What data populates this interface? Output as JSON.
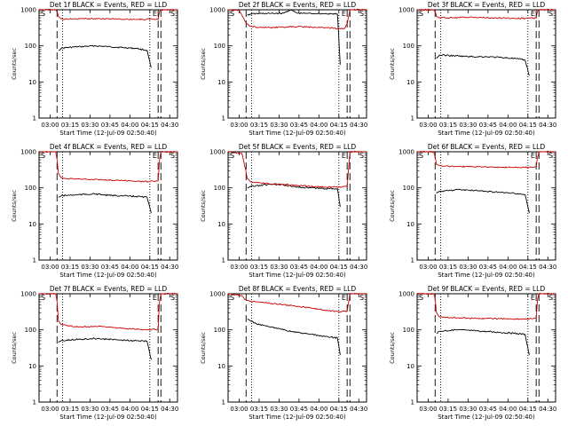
{
  "footer_stamp": "",
  "chart_data": [
    {
      "type": "line",
      "title": "Det 1f BLACK = Events, RED = LLD",
      "xlabel": "Start Time (12-Jul-09 02:50:40)",
      "ylabel": "Counts/sec",
      "xticks": [
        "03:00",
        "03:15",
        "03:30",
        "03:45",
        "04:00",
        "04:15",
        "04:30"
      ],
      "xlim": [
        0,
        100
      ],
      "ylim": [
        1,
        1000
      ],
      "yscale": "log",
      "yticks": [
        "1",
        "10",
        "100",
        "1000"
      ],
      "markers": {
        "S": "S",
        "E": "E"
      },
      "dashed_x": [
        13,
        86,
        88
      ],
      "dotted_x": [
        17,
        80
      ],
      "colors": {
        "events": "#000000",
        "lld": "#cc0000"
      },
      "series": [
        {
          "name": "BLACK = Events",
          "x": [
            14,
            16,
            20,
            30,
            40,
            50,
            60,
            70,
            78,
            81
          ],
          "y": [
            75,
            85,
            90,
            95,
            100,
            95,
            90,
            85,
            75,
            25
          ]
        },
        {
          "name": "RED = LLD",
          "x": [
            0,
            12,
            13,
            14,
            16,
            20,
            30,
            40,
            50,
            60,
            70,
            80,
            86,
            87,
            88,
            100
          ],
          "y": [
            1000,
            1000,
            900,
            650,
            560,
            550,
            560,
            570,
            560,
            550,
            540,
            545,
            550,
            900,
            1000,
            1000
          ]
        }
      ]
    },
    {
      "type": "line",
      "title": "Det 2f BLACK = Events, RED = LLD",
      "xlabel": "Start Time (12-Jul-09 02:50:40)",
      "ylabel": "Counts/sec",
      "xticks": [
        "03:00",
        "03:15",
        "03:30",
        "03:45",
        "04:00",
        "04:15",
        "04:30"
      ],
      "xlim": [
        0,
        100
      ],
      "ylim": [
        1,
        1000
      ],
      "yscale": "log",
      "yticks": [
        "1",
        "10",
        "100",
        "1000"
      ],
      "markers": {
        "S": "S",
        "E": "E"
      },
      "dashed_x": [
        13,
        86,
        88
      ],
      "dotted_x": [
        17,
        80
      ],
      "colors": {
        "events": "#000000",
        "lld": "#cc0000"
      },
      "series": [
        {
          "name": "BLACK = Events",
          "x": [
            14,
            16,
            20,
            30,
            40,
            45,
            50,
            60,
            70,
            79,
            81
          ],
          "y": [
            700,
            760,
            780,
            790,
            800,
            1000,
            800,
            790,
            780,
            760,
            30
          ]
        },
        {
          "name": "RED = LLD",
          "x": [
            0,
            8,
            10,
            12,
            14,
            16,
            20,
            30,
            40,
            50,
            60,
            70,
            80,
            84,
            86,
            88,
            100
          ],
          "y": [
            1000,
            950,
            700,
            500,
            400,
            350,
            330,
            320,
            330,
            340,
            330,
            320,
            300,
            300,
            400,
            1000,
            1000
          ]
        }
      ]
    },
    {
      "type": "line",
      "title": "Det 3f BLACK = Events, RED = LLD",
      "xlabel": "Start Time (12-Jul-09 02:50:40)",
      "ylabel": "Counts/sec",
      "xticks": [
        "03:00",
        "03:15",
        "03:30",
        "03:45",
        "04:00",
        "04:15",
        "04:30"
      ],
      "xlim": [
        0,
        100
      ],
      "ylim": [
        1,
        1000
      ],
      "yscale": "log",
      "yticks": [
        "1",
        "10",
        "100",
        "1000"
      ],
      "markers": {
        "S": "S",
        "E": "E"
      },
      "dashed_x": [
        13,
        86,
        88
      ],
      "dotted_x": [
        17,
        80
      ],
      "colors": {
        "events": "#000000",
        "lld": "#cc0000"
      },
      "series": [
        {
          "name": "BLACK = Events",
          "x": [
            14,
            16,
            20,
            30,
            40,
            50,
            60,
            70,
            78,
            81
          ],
          "y": [
            45,
            55,
            55,
            52,
            50,
            50,
            48,
            45,
            40,
            15
          ]
        },
        {
          "name": "RED = LLD",
          "x": [
            0,
            12,
            13,
            14,
            16,
            20,
            30,
            40,
            50,
            60,
            70,
            80,
            86,
            87,
            88,
            100
          ],
          "y": [
            1000,
            1000,
            900,
            650,
            600,
            600,
            610,
            620,
            600,
            590,
            580,
            580,
            590,
            900,
            1000,
            1000
          ]
        }
      ]
    },
    {
      "type": "line",
      "title": "Det 4f BLACK = Events, RED = LLD",
      "xlabel": "Start Time (12-Jul-09 02:50:40)",
      "ylabel": "Counts/sec",
      "xticks": [
        "03:00",
        "03:15",
        "03:30",
        "03:45",
        "04:00",
        "04:15",
        "04:30"
      ],
      "xlim": [
        0,
        100
      ],
      "ylim": [
        1,
        1000
      ],
      "yscale": "log",
      "yticks": [
        "1",
        "10",
        "100",
        "1000"
      ],
      "markers": {
        "S": "S",
        "E": "E"
      },
      "dashed_x": [
        13,
        86,
        88
      ],
      "dotted_x": [
        17,
        80
      ],
      "colors": {
        "events": "#000000",
        "lld": "#cc0000"
      },
      "series": [
        {
          "name": "BLACK = Events",
          "x": [
            14,
            16,
            20,
            30,
            40,
            50,
            60,
            70,
            78,
            81
          ],
          "y": [
            55,
            60,
            62,
            65,
            68,
            62,
            60,
            58,
            55,
            20
          ]
        },
        {
          "name": "RED = LLD",
          "x": [
            0,
            12,
            13,
            14,
            16,
            20,
            30,
            40,
            50,
            60,
            70,
            80,
            86,
            87,
            88,
            100
          ],
          "y": [
            1000,
            1000,
            600,
            250,
            190,
            180,
            175,
            170,
            165,
            160,
            150,
            150,
            155,
            600,
            1000,
            1000
          ]
        }
      ]
    },
    {
      "type": "line",
      "title": "Det 5f BLACK = Events, RED = LLD",
      "xlabel": "Start Time (12-Jul-09 02:50:40)",
      "ylabel": "Counts/sec",
      "xticks": [
        "03:00",
        "03:15",
        "03:30",
        "03:45",
        "04:00",
        "04:15",
        "04:30"
      ],
      "xlim": [
        0,
        100
      ],
      "ylim": [
        1,
        1000
      ],
      "yscale": "log",
      "yticks": [
        "1",
        "10",
        "100",
        "1000"
      ],
      "markers": {
        "S": "S",
        "E": "E"
      },
      "dashed_x": [
        13,
        86,
        88
      ],
      "dotted_x": [
        17,
        80
      ],
      "colors": {
        "events": "#000000",
        "lld": "#cc0000"
      },
      "series": [
        {
          "name": "BLACK = Events",
          "x": [
            14,
            16,
            20,
            30,
            40,
            50,
            60,
            70,
            79,
            81
          ],
          "y": [
            100,
            110,
            115,
            125,
            120,
            105,
            100,
            95,
            95,
            30
          ]
        },
        {
          "name": "RED = LLD",
          "x": [
            0,
            10,
            12,
            14,
            16,
            20,
            30,
            40,
            50,
            60,
            70,
            80,
            86,
            88,
            100
          ],
          "y": [
            1000,
            900,
            400,
            180,
            150,
            140,
            130,
            125,
            115,
            110,
            105,
            105,
            110,
            1000,
            1000
          ]
        }
      ]
    },
    {
      "type": "line",
      "title": "Det 6f BLACK = Events, RED = LLD",
      "xlabel": "Start Time (12-Jul-09 02:50:40)",
      "ylabel": "Counts/sec",
      "xticks": [
        "03:00",
        "03:15",
        "03:30",
        "03:45",
        "04:00",
        "04:15",
        "04:30"
      ],
      "xlim": [
        0,
        100
      ],
      "ylim": [
        1,
        1000
      ],
      "yscale": "log",
      "yticks": [
        "1",
        "10",
        "100",
        "1000"
      ],
      "markers": {
        "S": "S",
        "E": "E"
      },
      "dashed_x": [
        13,
        86,
        88
      ],
      "dotted_x": [
        17,
        80
      ],
      "colors": {
        "events": "#000000",
        "lld": "#cc0000"
      },
      "series": [
        {
          "name": "BLACK = Events",
          "x": [
            14,
            16,
            20,
            30,
            40,
            50,
            60,
            70,
            78,
            81
          ],
          "y": [
            70,
            80,
            82,
            90,
            85,
            80,
            75,
            70,
            65,
            20
          ]
        },
        {
          "name": "RED = LLD",
          "x": [
            0,
            12,
            13,
            14,
            16,
            20,
            30,
            40,
            50,
            60,
            70,
            80,
            86,
            87,
            88,
            100
          ],
          "y": [
            1000,
            1000,
            700,
            450,
            420,
            400,
            390,
            385,
            380,
            375,
            370,
            370,
            380,
            700,
            1000,
            1000
          ]
        }
      ]
    },
    {
      "type": "line",
      "title": "Det 7f BLACK = Events, RED = LLD",
      "xlabel": "Start Time (12-Jul-09 02:50:40)",
      "ylabel": "Counts/sec",
      "xticks": [
        "03:00",
        "03:15",
        "03:30",
        "03:45",
        "04:00",
        "04:15",
        "04:30"
      ],
      "xlim": [
        0,
        100
      ],
      "ylim": [
        1,
        1000
      ],
      "yscale": "log",
      "yticks": [
        "1",
        "10",
        "100",
        "1000"
      ],
      "markers": {
        "S": "S",
        "E": "E"
      },
      "dashed_x": [
        13,
        86,
        88
      ],
      "dotted_x": [
        17,
        80
      ],
      "colors": {
        "events": "#000000",
        "lld": "#cc0000"
      },
      "series": [
        {
          "name": "BLACK = Events",
          "x": [
            14,
            16,
            20,
            30,
            40,
            50,
            60,
            70,
            78,
            81
          ],
          "y": [
            45,
            50,
            52,
            55,
            58,
            55,
            52,
            50,
            48,
            15
          ]
        },
        {
          "name": "RED = LLD",
          "x": [
            0,
            12,
            13,
            14,
            16,
            20,
            30,
            40,
            50,
            60,
            70,
            80,
            86,
            87,
            88,
            100
          ],
          "y": [
            1000,
            1000,
            600,
            180,
            140,
            130,
            120,
            125,
            120,
            110,
            105,
            100,
            105,
            600,
            1000,
            1000
          ]
        }
      ]
    },
    {
      "type": "line",
      "title": "Det 8f BLACK = Events, RED = LLD",
      "xlabel": "Start Time (12-Jul-09 02:50:40)",
      "ylabel": "Counts/sec",
      "xticks": [
        "03:00",
        "03:15",
        "03:30",
        "03:45",
        "04:00",
        "04:15",
        "04:30"
      ],
      "xlim": [
        0,
        100
      ],
      "ylim": [
        1,
        1000
      ],
      "yscale": "log",
      "yticks": [
        "1",
        "10",
        "100",
        "1000"
      ],
      "markers": {
        "S": "S",
        "E": "E"
      },
      "dashed_x": [
        13,
        86,
        88
      ],
      "dotted_x": [
        17,
        80
      ],
      "colors": {
        "events": "#000000",
        "lld": "#cc0000"
      },
      "series": [
        {
          "name": "BLACK = Events",
          "x": [
            14,
            16,
            20,
            30,
            40,
            50,
            60,
            70,
            79,
            81
          ],
          "y": [
            200,
            180,
            150,
            120,
            100,
            85,
            75,
            65,
            60,
            20
          ]
        },
        {
          "name": "RED = LLD",
          "x": [
            0,
            10,
            12,
            14,
            16,
            20,
            30,
            40,
            50,
            60,
            70,
            80,
            86,
            88,
            100
          ],
          "y": [
            1000,
            900,
            700,
            650,
            620,
            600,
            550,
            500,
            450,
            400,
            350,
            320,
            330,
            1000,
            1000
          ]
        }
      ]
    },
    {
      "type": "line",
      "title": "Det 9f BLACK = Events, RED = LLD",
      "xlabel": "Start Time (12-Jul-09 02:50:40)",
      "ylabel": "Counts/sec",
      "xticks": [
        "03:00",
        "03:15",
        "03:30",
        "03:45",
        "04:00",
        "04:15",
        "04:30"
      ],
      "xlim": [
        0,
        100
      ],
      "ylim": [
        1,
        1000
      ],
      "yscale": "log",
      "yticks": [
        "1",
        "10",
        "100",
        "1000"
      ],
      "markers": {
        "S": "S",
        "E": "E"
      },
      "dashed_x": [
        13,
        86,
        88
      ],
      "dotted_x": [
        17,
        80
      ],
      "colors": {
        "events": "#000000",
        "lld": "#cc0000"
      },
      "series": [
        {
          "name": "BLACK = Events",
          "x": [
            14,
            16,
            20,
            30,
            40,
            50,
            60,
            70,
            78,
            81
          ],
          "y": [
            80,
            90,
            95,
            100,
            95,
            90,
            85,
            80,
            75,
            20
          ]
        },
        {
          "name": "RED = LLD",
          "x": [
            0,
            12,
            13,
            14,
            16,
            20,
            30,
            40,
            50,
            60,
            70,
            80,
            86,
            87,
            88,
            100
          ],
          "y": [
            1000,
            1000,
            700,
            300,
            230,
            220,
            215,
            210,
            205,
            205,
            200,
            200,
            210,
            700,
            1000,
            1000
          ]
        }
      ]
    }
  ]
}
